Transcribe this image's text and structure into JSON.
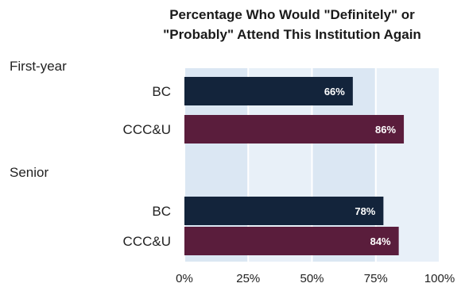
{
  "chart_data": {
    "type": "bar",
    "orientation": "horizontal",
    "title_line1": "Percentage Who Would \"Definitely\" or",
    "title_line2": "\"Probably\" Attend This Institution Again",
    "groups": [
      {
        "label": "First-year",
        "bars": [
          {
            "category": "BC",
            "value": 66,
            "label": "66%"
          },
          {
            "category": "CCC&U",
            "value": 86,
            "label": "86%"
          }
        ]
      },
      {
        "label": "Senior",
        "bars": [
          {
            "category": "BC",
            "value": 78,
            "label": "78%"
          },
          {
            "category": "CCC&U",
            "value": 84,
            "label": "84%"
          }
        ]
      }
    ],
    "xlim": [
      0,
      100
    ],
    "xticks": [
      "0%",
      "25%",
      "50%",
      "75%",
      "100%"
    ],
    "colors": {
      "BC": "#13243b",
      "CCC&U": "#5a1d3c",
      "panel": "#dbe7f3",
      "panel_alt": "#e8f0f8"
    }
  }
}
